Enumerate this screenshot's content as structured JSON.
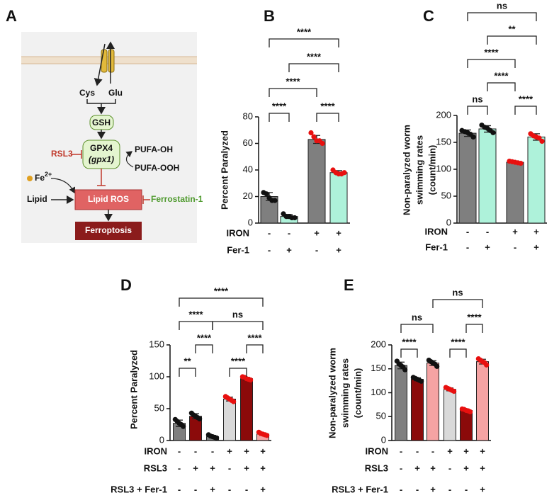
{
  "diagram": {
    "panel_label": "A",
    "cys": "Cys",
    "glu": "Glu",
    "gsh": "GSH",
    "gpx4": "GPX4",
    "gene": "(gpx1)",
    "pufa_oh": "PUFA-OH",
    "pufa_ooh": "PUFA-OOH",
    "rsl3": "RSL3",
    "iron": {
      "base": "Fe",
      "sup": "2+"
    },
    "lipid": "Lipid",
    "lipid_ros": "Lipid ROS",
    "ferrostatin": "Ferrostatin-1",
    "ferroptosis": "Ferroptosis"
  },
  "chart_data": [
    {
      "type": "bar",
      "panel_label": "B",
      "ylabel": [
        "Percent Paralyzed"
      ],
      "categories": [
        null,
        null,
        null,
        null
      ],
      "values": [
        20,
        5,
        63,
        38
      ],
      "errors": [
        3,
        1.5,
        3,
        1.5
      ],
      "points": [
        [
          23,
          22,
          19,
          17,
          17
        ],
        [
          7,
          5,
          5,
          4,
          4
        ],
        [
          68,
          65,
          62,
          62,
          60
        ],
        [
          40,
          38,
          37,
          37,
          38
        ]
      ],
      "colors": [
        "#7f7f7f",
        "#aef2da",
        "#7f7f7f",
        "#aef2da"
      ],
      "point_colors": [
        "#111111",
        "#111111",
        "#e8100f",
        "#e8100f"
      ],
      "ylim": [
        0,
        80
      ],
      "yticks": [
        0,
        20,
        40,
        60,
        80
      ],
      "treatments": [
        {
          "name": "IRON",
          "signs": [
            "-",
            "-",
            "+",
            "+"
          ]
        },
        {
          "name": "Fer-1",
          "signs": [
            "-",
            "+",
            "-",
            "+"
          ]
        }
      ],
      "comparisons": [
        "****",
        "****",
        "****",
        "****",
        "****"
      ]
    },
    {
      "type": "bar",
      "panel_label": "C",
      "ylabel": [
        "Non-paralyzed worm",
        "swimming rates",
        "(count/min)"
      ],
      "categories": [
        null,
        null,
        null,
        null
      ],
      "values": [
        167,
        175,
        113,
        160
      ],
      "errors": [
        6,
        6,
        2,
        6
      ],
      "points": [
        [
          172,
          170,
          168,
          165,
          160
        ],
        [
          182,
          178,
          176,
          172,
          168
        ],
        [
          115,
          114,
          113,
          112,
          111
        ],
        [
          166,
          162,
          160,
          158,
          152
        ]
      ],
      "colors": [
        "#7f7f7f",
        "#aef2da",
        "#7f7f7f",
        "#aef2da"
      ],
      "point_colors": [
        "#111111",
        "#111111",
        "#e8100f",
        "#e8100f"
      ],
      "ylim": [
        0,
        200
      ],
      "yticks": [
        0,
        50,
        100,
        150,
        200
      ],
      "treatments": [
        {
          "name": "IRON",
          "signs": [
            "-",
            "-",
            "+",
            "+"
          ]
        },
        {
          "name": "Fer-1",
          "signs": [
            "-",
            "+",
            "-",
            "+"
          ]
        }
      ],
      "comparisons": [
        "ns",
        "****",
        "****",
        "****",
        "**",
        "ns"
      ]
    },
    {
      "type": "bar",
      "panel_label": "D",
      "ylabel": [
        "Percent Paralyzed"
      ],
      "categories": [
        null,
        null,
        null,
        null,
        null,
        null
      ],
      "values": [
        27,
        38,
        6,
        65,
        97,
        10
      ],
      "errors": [
        5,
        4,
        2,
        3,
        2,
        2
      ],
      "points": [
        [
          33,
          30,
          27,
          25,
          22
        ],
        [
          43,
          40,
          38,
          36,
          34
        ],
        [
          9,
          7,
          6,
          5,
          4
        ],
        [
          69,
          67,
          65,
          63,
          61
        ],
        [
          100,
          99,
          97,
          96,
          95
        ],
        [
          13,
          11,
          10,
          9,
          8
        ]
      ],
      "colors": [
        "#7f7f7f",
        "#8b0a0a",
        "#7f7f7f",
        "#d9d9d9",
        "#8b0a0a",
        "#f5a3a3"
      ],
      "point_colors": [
        "#111111",
        "#111111",
        "#111111",
        "#e8100f",
        "#e8100f",
        "#e8100f"
      ],
      "ylim": [
        0,
        150
      ],
      "yticks": [
        0,
        50,
        100,
        150
      ],
      "treatments": [
        {
          "name": "IRON",
          "signs": [
            "-",
            "-",
            "-",
            "+",
            "+",
            "+"
          ]
        },
        {
          "name": "RSL3",
          "signs": [
            "-",
            "+",
            "+",
            "-",
            "+",
            "+"
          ]
        },
        {
          "name": "RSL3 + Fer-1",
          "signs": [
            "-",
            "-",
            "+",
            "-",
            "-",
            "+"
          ]
        }
      ],
      "comparisons": [
        "**",
        "****",
        "****",
        "****",
        "****",
        "ns",
        "****"
      ]
    },
    {
      "type": "bar",
      "panel_label": "E",
      "ylabel": [
        "Non-paralyzed worm",
        "swimming rates",
        "(count/min)"
      ],
      "categories": [
        null,
        null,
        null,
        null,
        null,
        null
      ],
      "values": [
        157,
        128,
        162,
        107,
        63,
        165
      ],
      "errors": [
        7,
        3,
        5,
        3,
        2,
        5
      ],
      "points": [
        [
          166,
          160,
          157,
          154,
          148
        ],
        [
          132,
          130,
          128,
          126,
          124
        ],
        [
          168,
          165,
          162,
          160,
          155
        ],
        [
          111,
          109,
          107,
          105,
          103
        ],
        [
          66,
          65,
          63,
          62,
          60
        ],
        [
          171,
          168,
          165,
          163,
          158
        ]
      ],
      "colors": [
        "#7f7f7f",
        "#8b0a0a",
        "#f5a3a3",
        "#d9d9d9",
        "#8b0a0a",
        "#f5a3a3"
      ],
      "point_colors": [
        "#111111",
        "#111111",
        "#111111",
        "#e8100f",
        "#e8100f",
        "#e8100f"
      ],
      "ylim": [
        0,
        200
      ],
      "yticks": [
        0,
        50,
        100,
        150,
        200
      ],
      "treatments": [
        {
          "name": "IRON",
          "signs": [
            "-",
            "-",
            "-",
            "+",
            "+",
            "+"
          ]
        },
        {
          "name": "RSL3",
          "signs": [
            "-",
            "+",
            "+",
            "-",
            "+",
            "+"
          ]
        },
        {
          "name": "RSL3 + Fer-1",
          "signs": [
            "-",
            "-",
            "+",
            "-",
            "-",
            "+"
          ]
        }
      ],
      "comparisons": [
        "****",
        "****",
        "ns",
        "****",
        "ns"
      ]
    }
  ]
}
